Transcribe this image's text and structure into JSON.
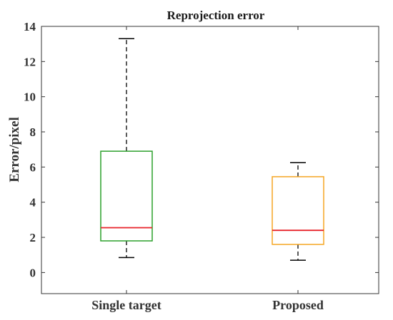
{
  "chart_data": {
    "type": "box",
    "title": "Reprojection error",
    "xlabel": "",
    "ylabel": "Error/pixel",
    "ylim": [
      -1.2,
      14
    ],
    "yticks": [
      0,
      2,
      4,
      6,
      8,
      10,
      12,
      14
    ],
    "ytick_labels": [
      "0",
      "2",
      "4",
      "6",
      "8",
      "10",
      "12",
      "14"
    ],
    "grid": false,
    "categories": [
      "Single target",
      "Proposed"
    ],
    "boxes": [
      {
        "category": "Single target",
        "whisker_low": 0.85,
        "q1": 1.8,
        "median": 2.55,
        "q3": 6.9,
        "whisker_high": 13.3,
        "box_color": "#2ca02c",
        "median_color": "#e8232a"
      },
      {
        "category": "Proposed",
        "whisker_low": 0.7,
        "q1": 1.6,
        "median": 2.4,
        "q3": 5.45,
        "whisker_high": 6.25,
        "box_color": "#f5a623",
        "median_color": "#e8232a"
      }
    ]
  }
}
